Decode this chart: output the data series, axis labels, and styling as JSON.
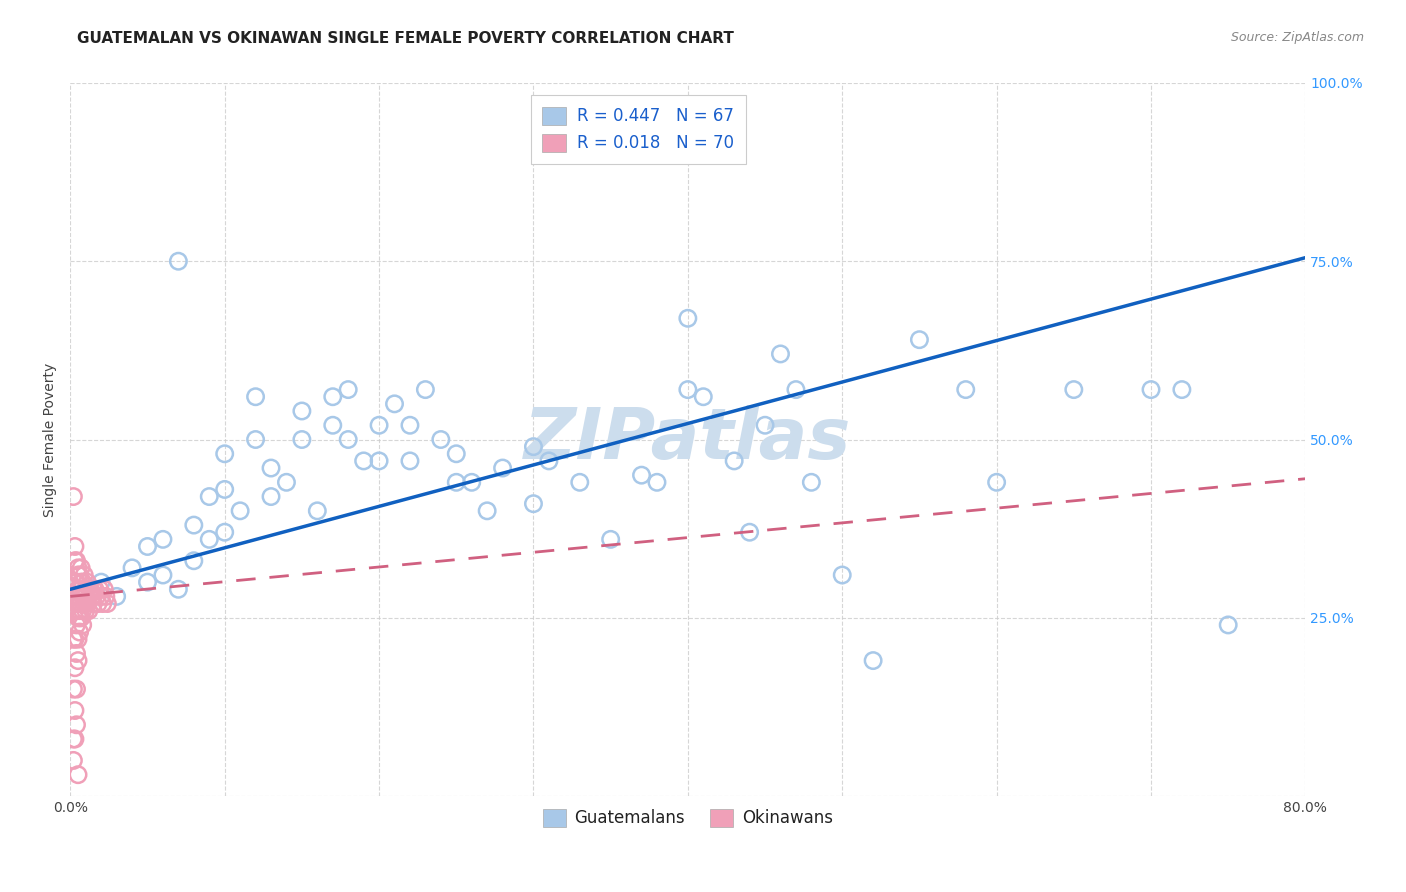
{
  "title": "GUATEMALAN VS OKINAWAN SINGLE FEMALE POVERTY CORRELATION CHART",
  "source": "Source: ZipAtlas.com",
  "ylabel": "Single Female Poverty",
  "watermark": "ZIPatlas",
  "xlim": [
    0.0,
    0.8
  ],
  "ylim": [
    0.0,
    1.0
  ],
  "guatemalan_R": "0.447",
  "guatemalan_N": "67",
  "okinawan_R": "0.018",
  "okinawan_N": "70",
  "guatemalan_color": "#a8c8e8",
  "okinawan_color": "#f0a0b8",
  "guatemalan_line_color": "#1060c0",
  "okinawan_line_color": "#d06080",
  "legend_guatemalans": "Guatemalans",
  "legend_okinawans": "Okinawans",
  "guatemalan_scatter_x": [
    0.02,
    0.03,
    0.04,
    0.05,
    0.05,
    0.06,
    0.06,
    0.07,
    0.07,
    0.08,
    0.08,
    0.09,
    0.09,
    0.1,
    0.1,
    0.1,
    0.11,
    0.12,
    0.12,
    0.13,
    0.13,
    0.14,
    0.15,
    0.15,
    0.16,
    0.17,
    0.17,
    0.18,
    0.18,
    0.19,
    0.2,
    0.2,
    0.21,
    0.22,
    0.22,
    0.23,
    0.24,
    0.25,
    0.25,
    0.26,
    0.27,
    0.28,
    0.3,
    0.3,
    0.31,
    0.33,
    0.35,
    0.37,
    0.38,
    0.4,
    0.4,
    0.41,
    0.43,
    0.44,
    0.45,
    0.46,
    0.47,
    0.48,
    0.5,
    0.52,
    0.55,
    0.58,
    0.6,
    0.65,
    0.7,
    0.72,
    0.75
  ],
  "guatemalan_scatter_y": [
    0.3,
    0.28,
    0.32,
    0.3,
    0.35,
    0.31,
    0.36,
    0.29,
    0.75,
    0.33,
    0.38,
    0.36,
    0.42,
    0.37,
    0.43,
    0.48,
    0.4,
    0.5,
    0.56,
    0.42,
    0.46,
    0.44,
    0.5,
    0.54,
    0.4,
    0.52,
    0.56,
    0.5,
    0.57,
    0.47,
    0.52,
    0.47,
    0.55,
    0.47,
    0.52,
    0.57,
    0.5,
    0.48,
    0.44,
    0.44,
    0.4,
    0.46,
    0.49,
    0.41,
    0.47,
    0.44,
    0.36,
    0.45,
    0.44,
    0.67,
    0.57,
    0.56,
    0.47,
    0.37,
    0.52,
    0.62,
    0.57,
    0.44,
    0.31,
    0.19,
    0.64,
    0.57,
    0.44,
    0.57,
    0.57,
    0.57,
    0.24
  ],
  "okinawan_scatter_x": [
    0.002,
    0.002,
    0.002,
    0.002,
    0.002,
    0.003,
    0.003,
    0.003,
    0.003,
    0.003,
    0.003,
    0.003,
    0.003,
    0.003,
    0.004,
    0.004,
    0.004,
    0.004,
    0.004,
    0.004,
    0.004,
    0.004,
    0.005,
    0.005,
    0.005,
    0.005,
    0.005,
    0.005,
    0.005,
    0.005,
    0.005,
    0.006,
    0.006,
    0.006,
    0.006,
    0.006,
    0.006,
    0.006,
    0.007,
    0.007,
    0.007,
    0.007,
    0.007,
    0.008,
    0.008,
    0.008,
    0.008,
    0.009,
    0.009,
    0.009,
    0.01,
    0.01,
    0.01,
    0.011,
    0.011,
    0.012,
    0.012,
    0.013,
    0.014,
    0.015,
    0.015,
    0.016,
    0.017,
    0.018,
    0.019,
    0.02,
    0.021,
    0.022,
    0.023,
    0.024
  ],
  "okinawan_scatter_y": [
    0.42,
    0.08,
    0.15,
    0.22,
    0.05,
    0.28,
    0.22,
    0.3,
    0.18,
    0.33,
    0.26,
    0.12,
    0.35,
    0.08,
    0.3,
    0.24,
    0.2,
    0.28,
    0.33,
    0.27,
    0.15,
    0.1,
    0.31,
    0.27,
    0.25,
    0.29,
    0.22,
    0.32,
    0.19,
    0.28,
    0.03,
    0.29,
    0.25,
    0.31,
    0.27,
    0.23,
    0.29,
    0.26,
    0.3,
    0.27,
    0.25,
    0.29,
    0.32,
    0.28,
    0.3,
    0.26,
    0.24,
    0.28,
    0.31,
    0.27,
    0.28,
    0.26,
    0.29,
    0.27,
    0.3,
    0.28,
    0.26,
    0.29,
    0.28,
    0.29,
    0.27,
    0.29,
    0.28,
    0.27,
    0.29,
    0.28,
    0.27,
    0.29,
    0.28,
    0.27
  ],
  "background_color": "#ffffff",
  "grid_color": "#cccccc",
  "title_fontsize": 11,
  "axis_label_fontsize": 10,
  "tick_fontsize": 10,
  "legend_fontsize": 12,
  "watermark_fontsize": 52,
  "watermark_color": "#ccdded"
}
